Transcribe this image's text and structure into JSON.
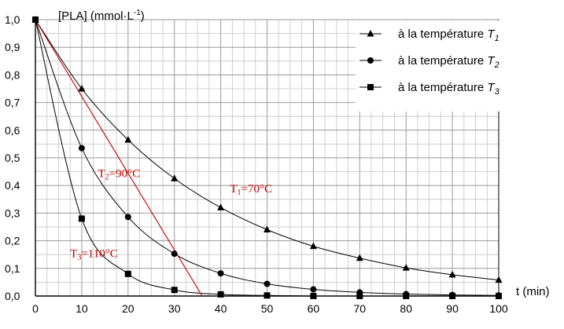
{
  "chart_data": {
    "type": "line",
    "ylabel": "[PLA] (mmol·L",
    "ylabel_exp": "-1",
    "ylabel_close": ")",
    "xlabel": "t (min)",
    "xlim": [
      0,
      100
    ],
    "ylim": [
      0,
      1.0
    ],
    "x_ticks": [
      0,
      10,
      20,
      30,
      40,
      50,
      60,
      70,
      80,
      90,
      100
    ],
    "x_tick_labels": [
      "0",
      "10",
      "20",
      "30",
      "40",
      "50",
      "60",
      "70",
      "80",
      "90",
      "100"
    ],
    "y_ticks": [
      0,
      0.1,
      0.2,
      0.3,
      0.4,
      0.5,
      0.6,
      0.7,
      0.8,
      0.9,
      1.0
    ],
    "y_tick_labels": [
      "0,0",
      "0,1",
      "0,2",
      "0,3",
      "0,4",
      "0,5",
      "0,6",
      "0,7",
      "0,8",
      "0,9",
      "1,0"
    ],
    "grid": true,
    "legend_position": "top-right",
    "series": [
      {
        "legend_prefix": "à la température ",
        "legend_var": "T",
        "legend_sub": "1",
        "marker": "triangle",
        "x": [
          0,
          10,
          20,
          30,
          40,
          50,
          60,
          70,
          80,
          90,
          100
        ],
        "y": [
          1.0,
          0.75,
          0.565,
          0.425,
          0.32,
          0.24,
          0.18,
          0.137,
          0.102,
          0.077,
          0.058
        ]
      },
      {
        "legend_prefix": "à la température ",
        "legend_var": "T",
        "legend_sub": "2",
        "marker": "circle",
        "x": [
          0,
          10,
          20,
          30,
          40,
          50,
          60,
          70,
          80,
          90,
          100
        ],
        "y": [
          1.0,
          0.535,
          0.286,
          0.153,
          0.082,
          0.044,
          0.024,
          0.013,
          0.007,
          0.004,
          0.002
        ]
      },
      {
        "legend_prefix": "à la température ",
        "legend_var": "T",
        "legend_sub": "3",
        "marker": "square",
        "x": [
          0,
          10,
          20,
          30,
          40,
          50,
          60,
          70,
          80,
          90,
          100
        ],
        "y": [
          1.0,
          0.28,
          0.08,
          0.022,
          0.006,
          0.002,
          0.0,
          0.0,
          0.0,
          0.0,
          0.0
        ]
      }
    ],
    "tangent": {
      "x": [
        0,
        36
      ],
      "y": [
        1.0,
        0.0
      ],
      "color": "#c00000"
    },
    "annotations": [
      {
        "pre": "T",
        "sub": "1",
        "post": "=70°C",
        "x": 42,
        "y": 0.375,
        "color": "#c00000"
      },
      {
        "pre": "T",
        "sub": "2",
        "post": "=90°C",
        "x": 13.5,
        "y": 0.43,
        "color": "#c00000"
      },
      {
        "pre": "T",
        "sub": "3",
        "post": "=110°C",
        "x": 7.5,
        "y": 0.14,
        "color": "#c00000"
      }
    ]
  }
}
